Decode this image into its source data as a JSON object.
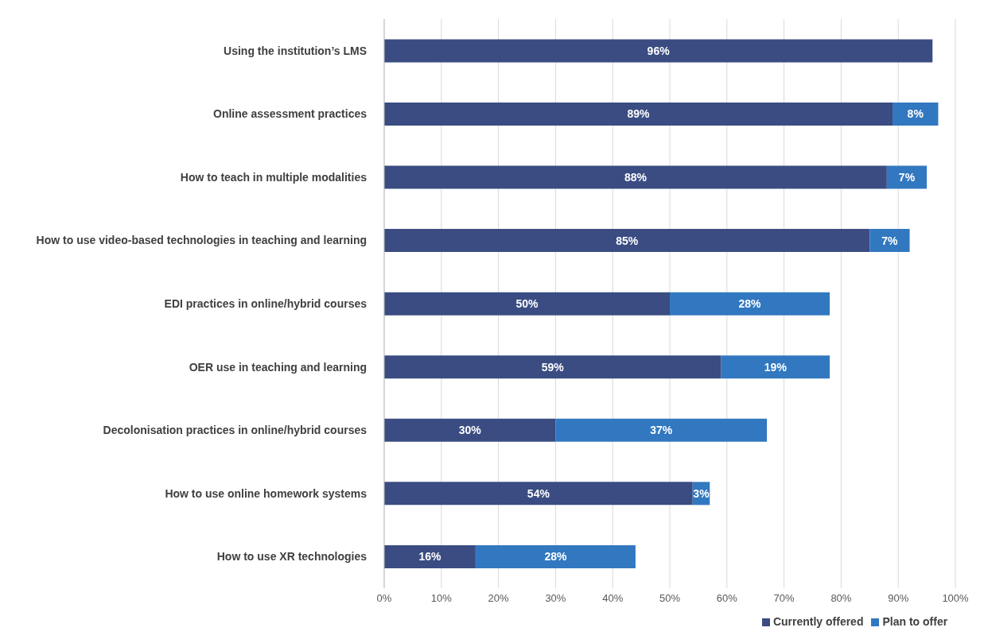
{
  "chart_data": {
    "type": "bar",
    "orientation": "horizontal",
    "stacked": true,
    "categories": [
      "Using the institution’s LMS",
      "Online assessment practices",
      "How to teach in multiple modalities",
      "How to use video-based technologies in teaching and learning",
      "EDI practices in online/hybrid courses",
      "OER use in teaching and learning",
      "Decolonisation practices in online/hybrid courses",
      "How to use online homework systems",
      "How to use XR technologies"
    ],
    "series": [
      {
        "name": "Currently offered",
        "color": "#3a4c82",
        "values": [
          96,
          89,
          88,
          85,
          50,
          59,
          30,
          54,
          16
        ],
        "value_labels": [
          "96%",
          "89%",
          "88%",
          "85%",
          "50%",
          "59%",
          "30%",
          "54%",
          "16%"
        ]
      },
      {
        "name": "Plan to offer",
        "color": "#3278c0",
        "values": [
          null,
          8,
          7,
          7,
          28,
          19,
          37,
          3,
          28
        ],
        "value_labels": [
          null,
          "8%",
          "7%",
          "7%",
          "28%",
          "19%",
          "37%",
          "3%",
          "28%"
        ]
      }
    ],
    "xlim": [
      0,
      100
    ],
    "xticks": [
      {
        "value": 0,
        "label": "0%"
      },
      {
        "value": 10,
        "label": "10%"
      },
      {
        "value": 20,
        "label": "20%"
      },
      {
        "value": 30,
        "label": "30%"
      },
      {
        "value": 40,
        "label": "40%"
      },
      {
        "value": 50,
        "label": "50%"
      },
      {
        "value": 60,
        "label": "60%"
      },
      {
        "value": 70,
        "label": "70%"
      },
      {
        "value": 80,
        "label": "80%"
      },
      {
        "value": 90,
        "label": "90%"
      },
      {
        "value": 100,
        "label": "100%"
      }
    ],
    "grid": "x",
    "legend": "bottom"
  }
}
